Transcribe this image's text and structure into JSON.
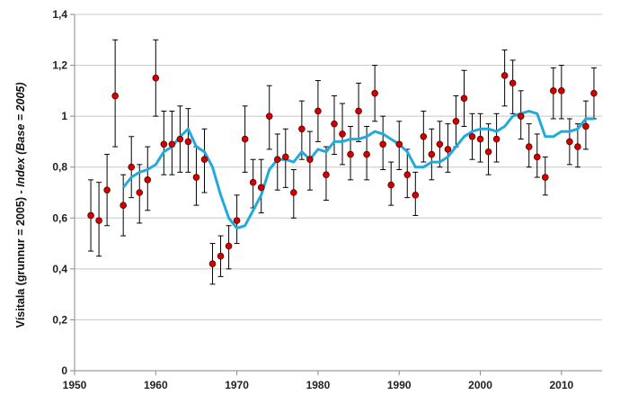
{
  "chart_data": {
    "type": "scatter",
    "xlim": [
      1950,
      2015
    ],
    "ylim": [
      0,
      1.4
    ],
    "x_ticks": [
      "1950",
      "1960",
      "1970",
      "1980",
      "1990",
      "2000",
      "2010"
    ],
    "y_ticks": [
      "0",
      "0,2",
      "0,4",
      "0,6",
      "0,8",
      "1",
      "1,2",
      "1,4"
    ],
    "ylabel_main": "Vísitala (grunnur = 2005) - ",
    "ylabel_italic": "Index (Base = 2005)",
    "grid": "horizontal",
    "colors": {
      "points": "#d40000",
      "trend": "#22aadd",
      "errorbars": "#000000",
      "grid": "#c8c8c8"
    },
    "points": {
      "x": [
        1952,
        1953,
        1954,
        1955,
        1956,
        1957,
        1958,
        1959,
        1960,
        1961,
        1962,
        1963,
        1964,
        1965,
        1966,
        1967,
        1968,
        1969,
        1970,
        1971,
        1972,
        1973,
        1974,
        1975,
        1976,
        1977,
        1978,
        1979,
        1980,
        1981,
        1982,
        1983,
        1984,
        1985,
        1986,
        1987,
        1988,
        1989,
        1990,
        1991,
        1992,
        1993,
        1994,
        1995,
        1996,
        1997,
        1998,
        1999,
        2000,
        2001,
        2002,
        2003,
        2004,
        2005,
        2006,
        2007,
        2008,
        2009,
        2010,
        2011,
        2012,
        2013,
        2014
      ],
      "y": [
        0.61,
        0.59,
        0.71,
        1.08,
        0.65,
        0.8,
        0.7,
        0.75,
        1.15,
        0.89,
        0.89,
        0.91,
        0.9,
        0.76,
        0.83,
        0.42,
        0.45,
        0.49,
        0.59,
        0.91,
        0.74,
        0.72,
        1.0,
        0.83,
        0.84,
        0.7,
        0.95,
        0.83,
        1.02,
        0.77,
        0.97,
        0.93,
        0.85,
        1.02,
        0.85,
        1.09,
        0.89,
        0.73,
        0.89,
        0.77,
        0.69,
        0.92,
        0.85,
        0.89,
        0.87,
        0.98,
        1.07,
        0.92,
        0.91,
        0.86,
        0.91,
        1.16,
        1.13,
        1.0,
        0.88,
        0.84,
        0.76,
        1.1,
        1.1,
        0.9,
        0.88,
        0.96,
        1.09
      ],
      "lower": [
        0.47,
        0.45,
        0.57,
        0.88,
        0.53,
        0.68,
        0.58,
        0.63,
        1.0,
        0.77,
        0.77,
        0.78,
        0.78,
        0.65,
        0.7,
        0.34,
        0.37,
        0.4,
        0.5,
        0.78,
        0.64,
        0.62,
        0.87,
        0.71,
        0.72,
        0.6,
        0.83,
        0.71,
        0.9,
        0.67,
        0.85,
        0.81,
        0.75,
        0.9,
        0.75,
        0.98,
        0.79,
        0.65,
        0.79,
        0.68,
        0.61,
        0.82,
        0.75,
        0.8,
        0.78,
        0.88,
        0.96,
        0.83,
        0.82,
        0.77,
        0.82,
        1.04,
        1.01,
        0.91,
        0.8,
        0.76,
        0.69,
        0.99,
        0.99,
        0.81,
        0.8,
        0.87,
        0.99
      ],
      "upper": [
        0.75,
        0.74,
        0.85,
        1.3,
        0.77,
        0.92,
        0.81,
        0.88,
        1.3,
        1.02,
        1.02,
        1.04,
        1.03,
        0.88,
        0.95,
        0.5,
        0.53,
        0.57,
        0.69,
        1.04,
        0.83,
        0.83,
        1.12,
        0.93,
        0.95,
        0.79,
        1.06,
        0.94,
        1.14,
        0.88,
        1.08,
        1.05,
        0.96,
        1.13,
        0.96,
        1.2,
        1.0,
        0.82,
        0.98,
        0.87,
        0.78,
        1.02,
        0.95,
        0.98,
        0.97,
        1.08,
        1.18,
        1.01,
        1.01,
        0.97,
        1.01,
        1.26,
        1.22,
        1.1,
        0.97,
        0.93,
        0.84,
        1.19,
        1.2,
        0.99,
        0.97,
        1.06,
        1.19
      ]
    },
    "trend": {
      "x": [
        1956,
        1957,
        1958,
        1959,
        1960,
        1961,
        1962,
        1963,
        1964,
        1965,
        1966,
        1967,
        1968,
        1969,
        1970,
        1971,
        1972,
        1973,
        1974,
        1975,
        1976,
        1977,
        1978,
        1979,
        1980,
        1981,
        1982,
        1983,
        1984,
        1985,
        1986,
        1987,
        1988,
        1989,
        1990,
        1991,
        1992,
        1993,
        1994,
        1995,
        1996,
        1997,
        1998,
        1999,
        2000,
        2001,
        2002,
        2003,
        2004,
        2005,
        2006,
        2007,
        2008,
        2009,
        2010,
        2011,
        2012,
        2013,
        2014
      ],
      "y": [
        0.72,
        0.76,
        0.78,
        0.79,
        0.81,
        0.86,
        0.88,
        0.92,
        0.95,
        0.88,
        0.86,
        0.8,
        0.69,
        0.6,
        0.56,
        0.57,
        0.63,
        0.69,
        0.79,
        0.83,
        0.83,
        0.82,
        0.86,
        0.83,
        0.87,
        0.86,
        0.9,
        0.9,
        0.91,
        0.91,
        0.92,
        0.94,
        0.93,
        0.91,
        0.89,
        0.86,
        0.8,
        0.8,
        0.82,
        0.82,
        0.84,
        0.88,
        0.92,
        0.94,
        0.95,
        0.95,
        0.94,
        0.96,
        1.0,
        1.01,
        1.02,
        1.01,
        0.92,
        0.92,
        0.94,
        0.94,
        0.95,
        0.99,
        0.99
      ]
    }
  }
}
